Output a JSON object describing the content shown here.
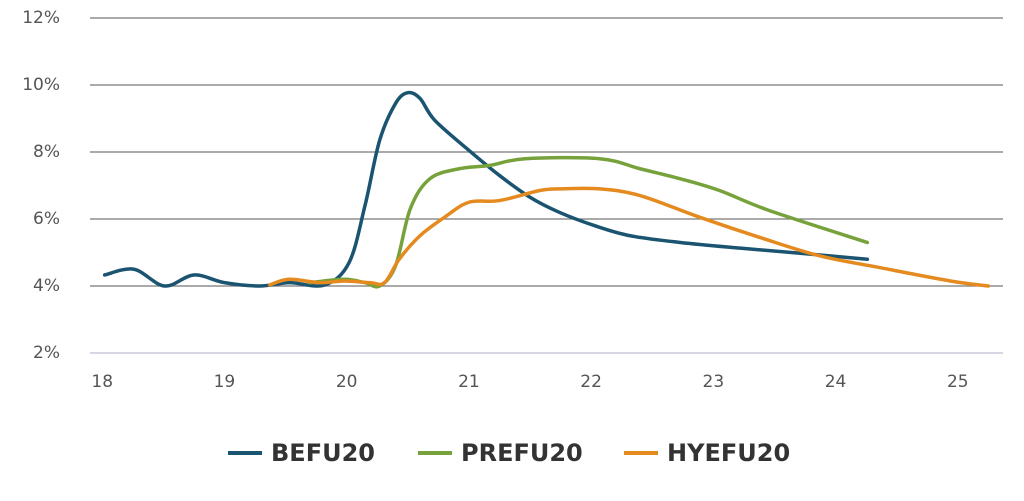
{
  "chart_data": {
    "type": "line",
    "xlim": [
      17.9,
      25.37
    ],
    "xticks": [
      18,
      19,
      20,
      21,
      22,
      23,
      24,
      25
    ],
    "ylim": [
      2,
      12
    ],
    "yticks": [
      {
        "value": 2,
        "label": "2%"
      },
      {
        "value": 4,
        "label": "4%"
      },
      {
        "value": 6,
        "label": "6%"
      },
      {
        "value": 8,
        "label": "8%"
      },
      {
        "value": 10,
        "label": "10%"
      },
      {
        "value": 12,
        "label": "12%"
      }
    ],
    "grid": true,
    "legend": "bottom",
    "series": [
      {
        "name": "BEFU20",
        "color": "#1a5470",
        "x": [
          18.02,
          18.26,
          18.51,
          18.75,
          19.0,
          19.29,
          19.53,
          19.82,
          20.02,
          20.15,
          20.27,
          20.4,
          20.5,
          20.6,
          20.72,
          21.0,
          21.25,
          21.5,
          21.74,
          22.03,
          22.32,
          22.73,
          23.22,
          23.7,
          24.26
        ],
        "values": [
          4.33,
          4.5,
          4.0,
          4.33,
          4.1,
          4.0,
          4.1,
          4.03,
          4.7,
          6.4,
          8.35,
          9.45,
          9.77,
          9.6,
          8.95,
          8.05,
          7.3,
          6.65,
          6.2,
          5.8,
          5.5,
          5.3,
          5.13,
          4.98,
          4.8
        ]
      },
      {
        "name": "PREFU20",
        "color": "#77a23b",
        "x": [
          19.7,
          19.98,
          20.15,
          20.27,
          20.4,
          20.52,
          20.68,
          20.92,
          21.17,
          21.46,
          22.07,
          22.4,
          22.73,
          23.05,
          23.46,
          24.26
        ],
        "values": [
          4.1,
          4.2,
          4.1,
          4.0,
          4.6,
          6.3,
          7.2,
          7.5,
          7.6,
          7.8,
          7.8,
          7.5,
          7.2,
          6.85,
          6.25,
          5.3
        ]
      },
      {
        "name": "HYEFU20",
        "color": "#e48a1f",
        "x": [
          19.37,
          19.53,
          19.78,
          19.98,
          20.19,
          20.31,
          20.43,
          20.6,
          20.8,
          21.0,
          21.25,
          21.58,
          21.74,
          22.07,
          22.4,
          22.89,
          23.38,
          23.87,
          24.36,
          24.94,
          25.25
        ],
        "values": [
          4.03,
          4.2,
          4.1,
          4.15,
          4.1,
          4.1,
          4.8,
          5.5,
          6.05,
          6.5,
          6.55,
          6.85,
          6.9,
          6.9,
          6.7,
          6.05,
          5.45,
          4.9,
          4.55,
          4.15,
          4.0
        ]
      }
    ]
  }
}
